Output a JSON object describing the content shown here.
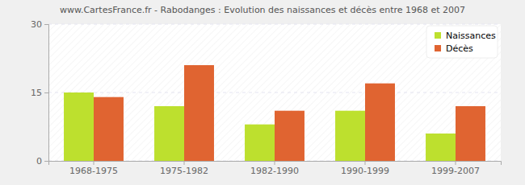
{
  "chart_data": {
    "type": "bar",
    "title": "www.CartesFrance.fr - Rabodanges : Evolution des naissances et décès entre 1968 et 2007",
    "categories": [
      "1968-1975",
      "1975-1982",
      "1982-1990",
      "1990-1999",
      "1999-2007"
    ],
    "series": [
      {
        "name": "Naissances",
        "color": "#bde02e",
        "values": [
          15,
          12,
          8,
          11,
          6
        ]
      },
      {
        "name": "Décès",
        "color": "#e06431",
        "values": [
          14,
          21,
          11,
          17,
          12
        ]
      }
    ],
    "ylim": [
      0,
      30
    ],
    "yticks": [
      0,
      15,
      30
    ],
    "grid": true,
    "legend": "top-right"
  }
}
